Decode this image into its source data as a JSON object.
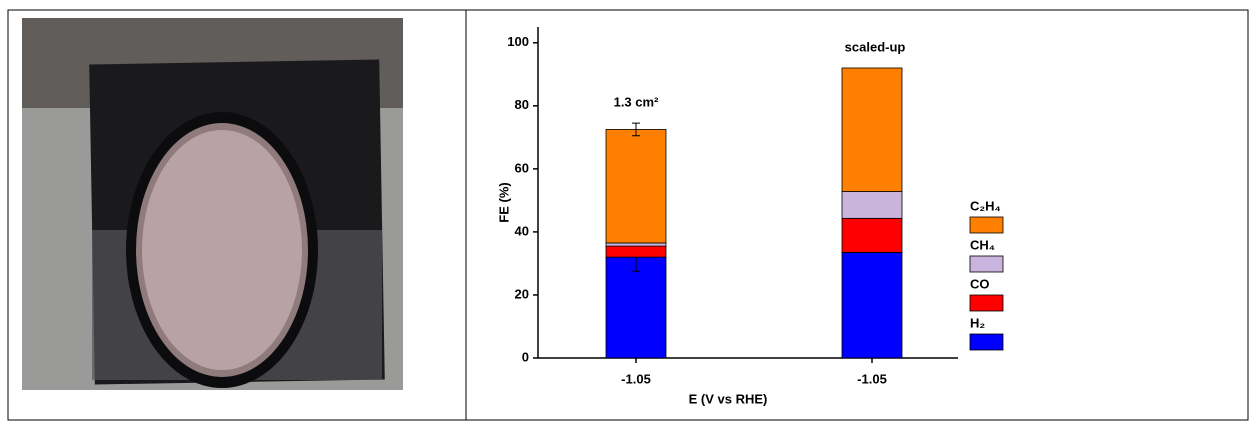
{
  "chart_data": {
    "type": "stacked-bar",
    "x_label": "E (V vs RHE)",
    "y_label": "FE (%)",
    "categories": [
      "-1.05",
      "-1.05"
    ],
    "annotations": [
      "1.3 cm²",
      "scaled-up"
    ],
    "series": [
      {
        "name": "H₂",
        "color": "#0000ff",
        "values": [
          32,
          33.5
        ],
        "errors": [
          4.5,
          null
        ]
      },
      {
        "name": "CO",
        "color": "#ff0000",
        "values": [
          3.5,
          10.8
        ],
        "errors": [
          null,
          null
        ]
      },
      {
        "name": "CH₄",
        "color": "#c8b4dc",
        "values": [
          1,
          8.5
        ],
        "errors": [
          null,
          null
        ]
      },
      {
        "name": "C₂H₄",
        "color": "#ff8000",
        "values": [
          36,
          39.2
        ],
        "errors": [
          2,
          null
        ]
      }
    ],
    "ylim": [
      0,
      105
    ],
    "yticks": [
      0,
      20,
      40,
      60,
      80,
      100
    ],
    "grid": false
  }
}
